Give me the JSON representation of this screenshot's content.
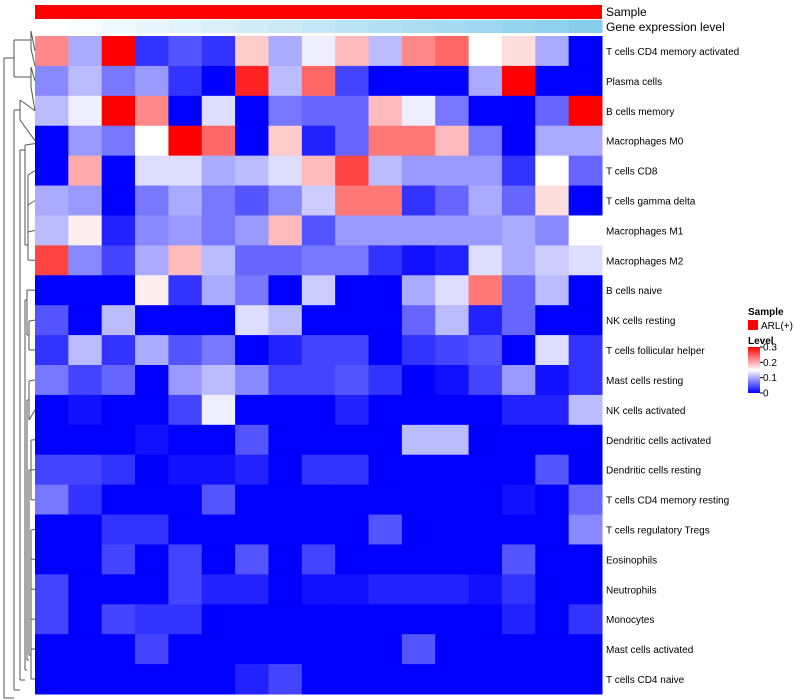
{
  "chart_data": {
    "type": "heatmap",
    "title": "",
    "annotation_tracks": [
      {
        "name": "Sample",
        "label": "Sample",
        "colors_by_column": "all-red",
        "color": "#ff0000"
      },
      {
        "name": "Gene expression level",
        "label": "Gene expression level",
        "scale": "low-to-high",
        "colors": [
          "#ffffff",
          "#87ceeb"
        ]
      }
    ],
    "rows": [
      "T cells CD4 memory activated",
      "Plasma cells",
      "B cells memory",
      "Macrophages M0",
      "T cells CD8",
      "T cells gamma delta",
      "Macrophages M1",
      "Macrophages M2",
      "B cells naive",
      "NK cells resting",
      "T cells follicular helper",
      "Mast cells resting",
      "NK cells activated",
      "Dendritic cells activated",
      "Dendritic cells resting",
      "T cells CD4 memory resting",
      "T cells regulatory  Tregs",
      "Eosinophils",
      "Neutrophils",
      "Monocytes",
      "Mast cells activated",
      "T cells CD4 naive"
    ],
    "n_columns": 17,
    "values": [
      [
        0.22,
        0.1,
        0.3,
        0.03,
        0.05,
        0.03,
        0.18,
        0.1,
        0.14,
        0.19,
        0.11,
        0.22,
        0.24,
        0.15,
        0.17,
        0.1,
        0.0
      ],
      [
        0.08,
        0.11,
        0.07,
        0.09,
        0.03,
        0.0,
        0.28,
        0.11,
        0.24,
        0.04,
        0.0,
        0.0,
        0.0,
        0.1,
        0.3,
        0.0,
        0.0
      ],
      [
        0.11,
        0.14,
        0.3,
        0.22,
        0.0,
        0.13,
        0.0,
        0.07,
        0.06,
        0.06,
        0.19,
        0.14,
        0.07,
        0.0,
        0.0,
        0.06,
        0.3
      ],
      [
        0.0,
        0.09,
        0.07,
        0.15,
        0.3,
        0.24,
        0.0,
        0.18,
        0.02,
        0.06,
        0.23,
        0.23,
        0.19,
        0.07,
        0.0,
        0.1,
        0.1
      ],
      [
        0.0,
        0.2,
        0.0,
        0.13,
        0.13,
        0.1,
        0.11,
        0.13,
        0.19,
        0.26,
        0.11,
        0.09,
        0.09,
        0.09,
        0.03,
        0.15,
        0.06
      ],
      [
        0.1,
        0.09,
        0.0,
        0.07,
        0.1,
        0.07,
        0.05,
        0.08,
        0.12,
        0.23,
        0.23,
        0.03,
        0.06,
        0.1,
        0.06,
        0.17,
        0.0
      ],
      [
        0.11,
        0.16,
        0.02,
        0.08,
        0.09,
        0.07,
        0.09,
        0.19,
        0.05,
        0.09,
        0.09,
        0.09,
        0.09,
        0.09,
        0.1,
        0.08,
        0.15
      ],
      [
        0.26,
        0.08,
        0.04,
        0.1,
        0.19,
        0.11,
        0.06,
        0.06,
        0.07,
        0.07,
        0.03,
        0.01,
        0.02,
        0.13,
        0.1,
        0.12,
        0.13
      ],
      [
        0.0,
        0.0,
        0.0,
        0.16,
        0.03,
        0.1,
        0.07,
        0.0,
        0.12,
        0.0,
        0.0,
        0.1,
        0.13,
        0.23,
        0.06,
        0.11,
        0.0
      ],
      [
        0.05,
        0.0,
        0.11,
        0.0,
        0.0,
        0.0,
        0.13,
        0.11,
        0.0,
        0.0,
        0.0,
        0.06,
        0.11,
        0.02,
        0.06,
        0.0,
        0.0
      ],
      [
        0.03,
        0.11,
        0.03,
        0.1,
        0.05,
        0.07,
        0.0,
        0.02,
        0.04,
        0.04,
        0.0,
        0.03,
        0.04,
        0.05,
        0.0,
        0.13,
        0.03
      ],
      [
        0.07,
        0.04,
        0.06,
        0.0,
        0.09,
        0.11,
        0.08,
        0.04,
        0.04,
        0.05,
        0.03,
        0.0,
        0.01,
        0.04,
        0.09,
        0.01,
        0.03
      ],
      [
        0.0,
        0.01,
        0.0,
        0.0,
        0.04,
        0.14,
        0.0,
        0.0,
        0.0,
        0.02,
        0.0,
        0.0,
        0.0,
        0.0,
        0.02,
        0.02,
        0.11
      ],
      [
        0.0,
        0.0,
        0.0,
        0.01,
        0.0,
        0.0,
        0.05,
        0.0,
        0.0,
        0.0,
        0.0,
        0.11,
        0.11,
        0.0,
        0.0,
        0.0,
        0.0
      ],
      [
        0.04,
        0.04,
        0.03,
        0.0,
        0.01,
        0.01,
        0.02,
        0.0,
        0.03,
        0.03,
        0.0,
        0.0,
        0.0,
        0.0,
        0.0,
        0.05,
        0.0
      ],
      [
        0.07,
        0.03,
        0.0,
        0.0,
        0.0,
        0.05,
        0.0,
        0.0,
        0.0,
        0.0,
        0.0,
        0.0,
        0.0,
        0.0,
        0.01,
        0.0,
        0.06
      ],
      [
        0.0,
        0.0,
        0.03,
        0.03,
        0.0,
        0.0,
        0.0,
        0.0,
        0.0,
        0.0,
        0.05,
        0.0,
        0.0,
        0.0,
        0.0,
        0.0,
        0.08
      ],
      [
        0.0,
        0.0,
        0.04,
        0.0,
        0.04,
        0.0,
        0.05,
        0.0,
        0.04,
        0.0,
        0.0,
        0.0,
        0.0,
        0.0,
        0.05,
        0.0,
        0.0
      ],
      [
        0.04,
        0.0,
        0.0,
        0.0,
        0.04,
        0.02,
        0.02,
        0.0,
        0.01,
        0.01,
        0.02,
        0.02,
        0.02,
        0.01,
        0.03,
        0.0,
        0.0
      ],
      [
        0.04,
        0.0,
        0.04,
        0.03,
        0.03,
        0.0,
        0.0,
        0.0,
        0.0,
        0.0,
        0.0,
        0.0,
        0.0,
        0.0,
        0.02,
        0.0,
        0.03
      ],
      [
        0.0,
        0.0,
        0.0,
        0.04,
        0.0,
        0.0,
        0.0,
        0.0,
        0.0,
        0.0,
        0.0,
        0.05,
        0.0,
        0.0,
        0.0,
        0.0,
        0.0
      ],
      [
        0.0,
        0.0,
        0.0,
        0.0,
        0.0,
        0.0,
        0.02,
        0.04,
        0.0,
        0.0,
        0.0,
        0.0,
        0.0,
        0.0,
        0.0,
        0.0,
        0.0
      ]
    ],
    "color_scale": {
      "min": 0,
      "mid": 0.15,
      "max": 0.3,
      "low_color": "#0000ff",
      "mid_color": "#ffffff",
      "high_color": "#ff0000"
    },
    "legend": {
      "sample_title": "Sample",
      "sample_entry": "ARL(+)",
      "level_title": "Level",
      "level_ticks": [
        {
          "value": 0.3,
          "label": "0.3"
        },
        {
          "value": 0.2,
          "label": "0.2"
        },
        {
          "value": 0.1,
          "label": "0.1"
        },
        {
          "value": 0,
          "label": "0"
        }
      ],
      "placement": "right"
    },
    "row_dendrogram": "left",
    "xlabel": "",
    "ylabel": ""
  }
}
